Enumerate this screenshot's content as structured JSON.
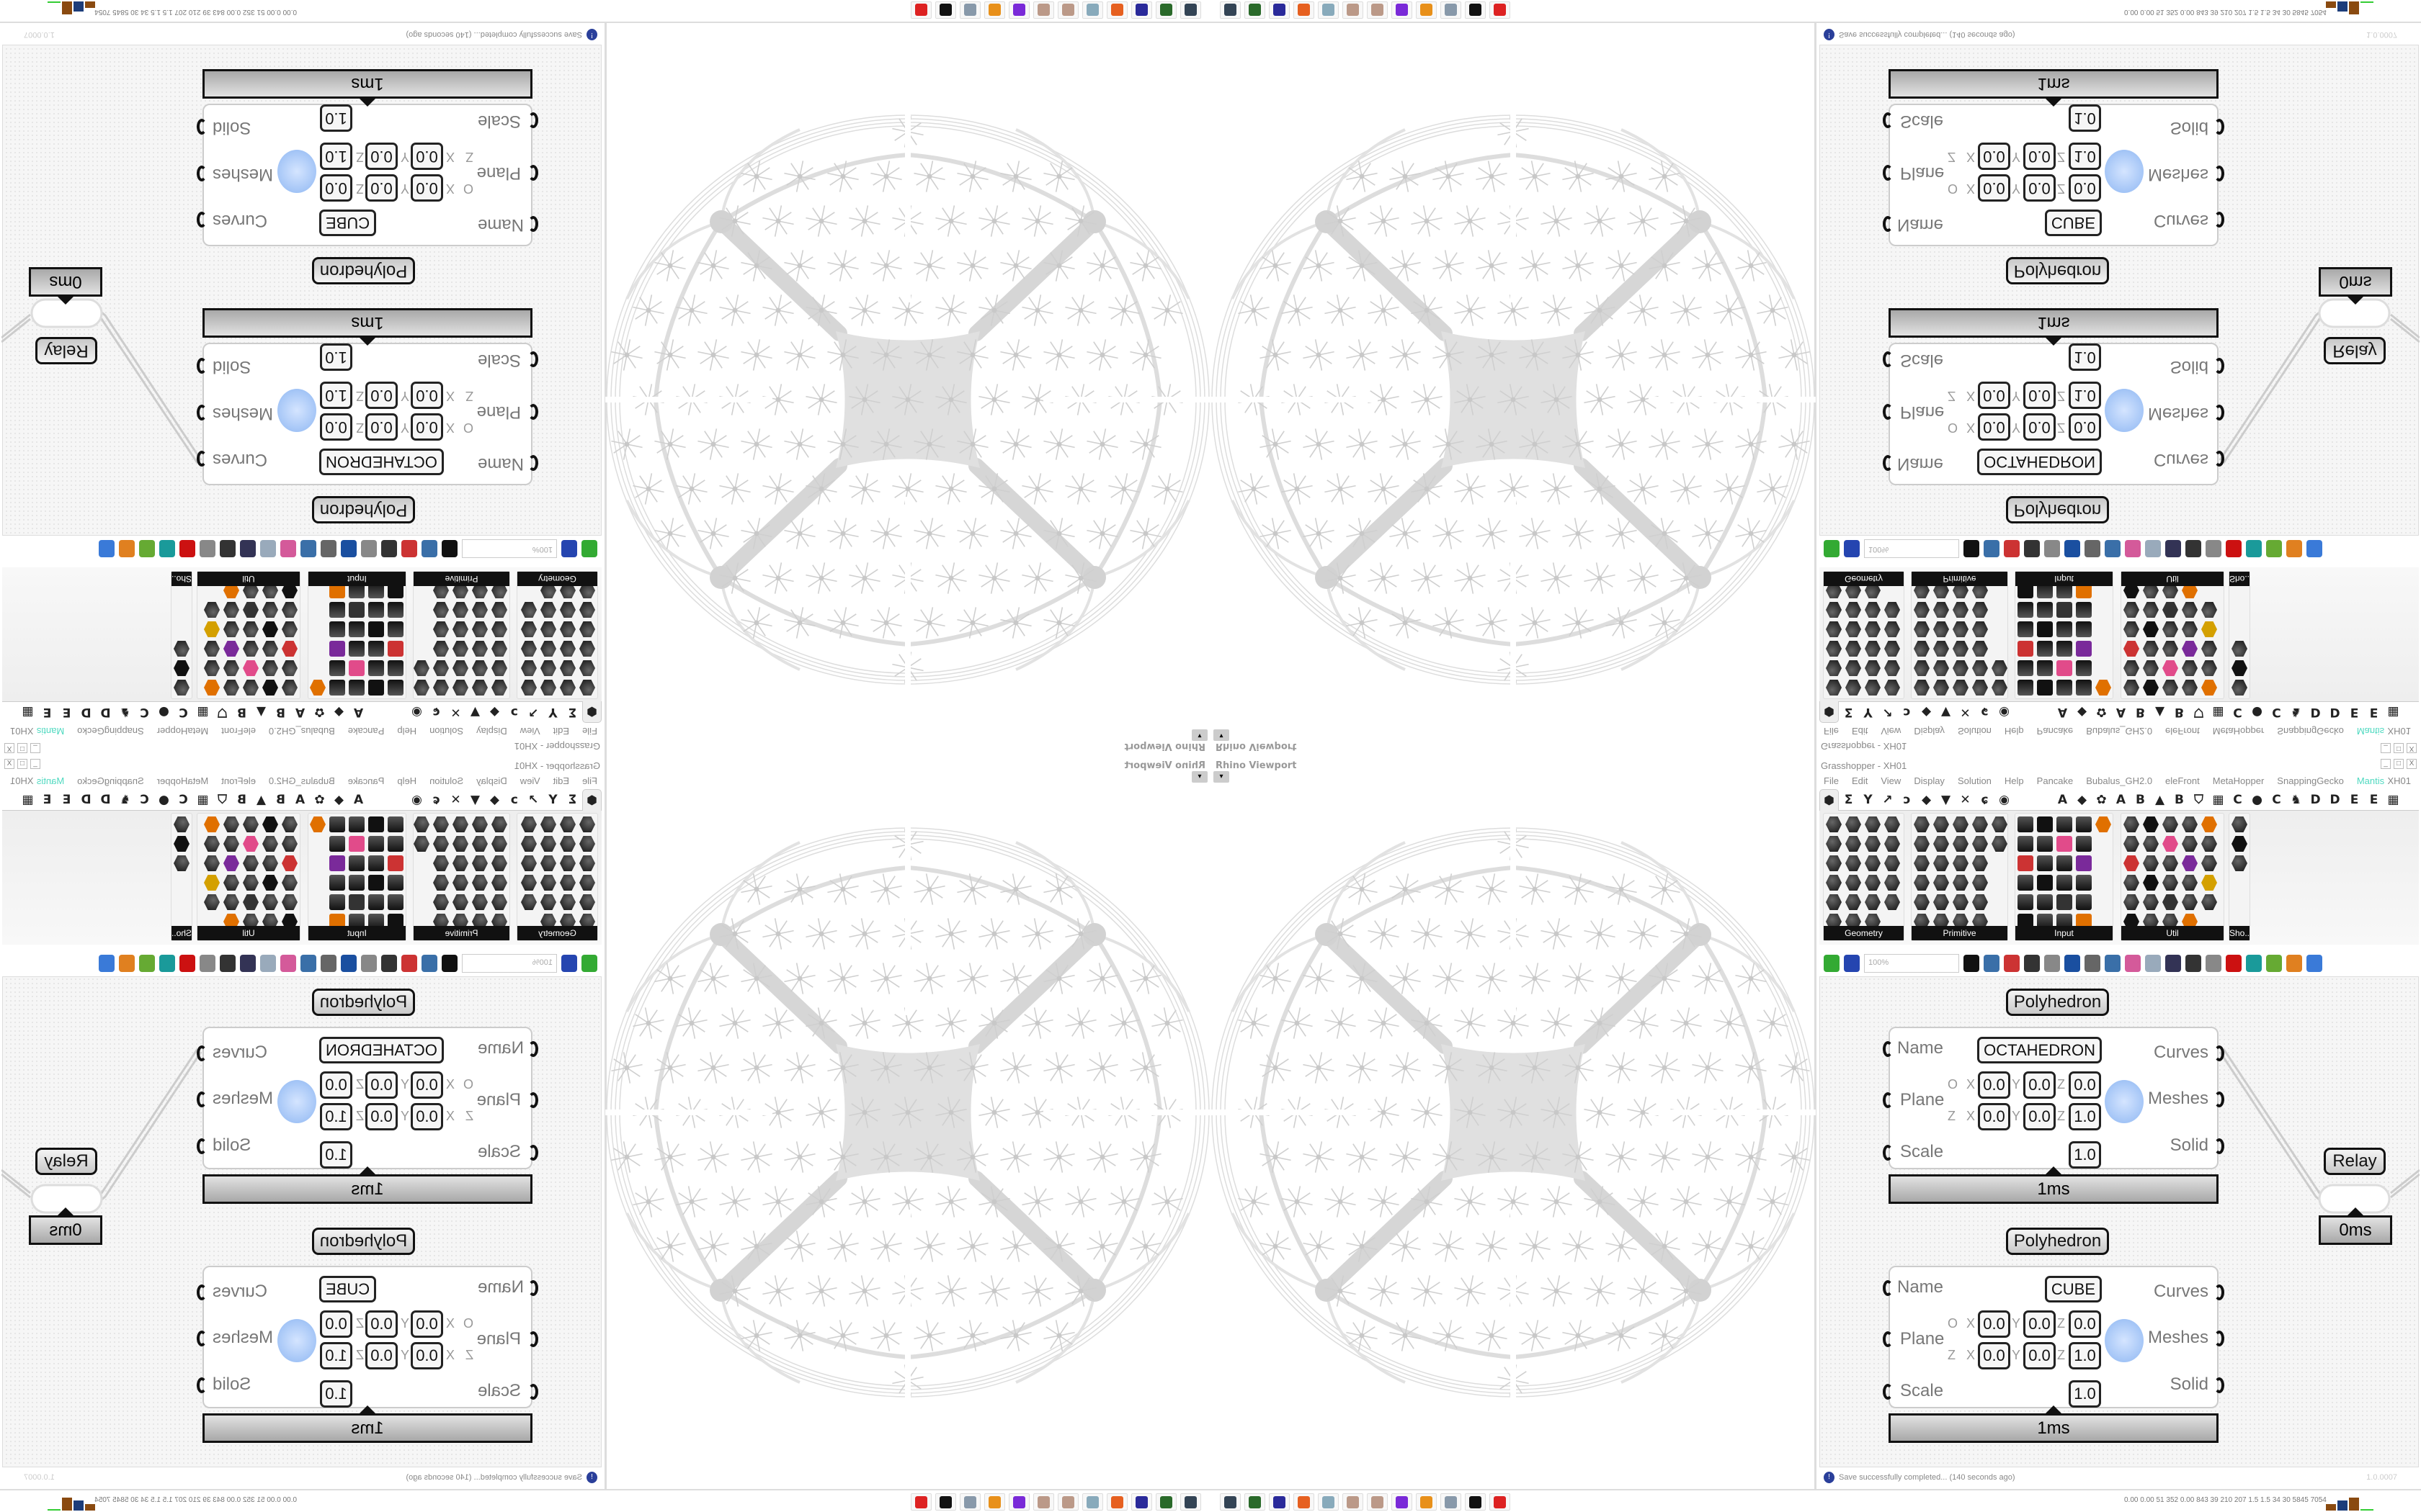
{
  "viewport": {
    "label": "Rhino Viewport",
    "dropdown": "▾"
  },
  "gh": {
    "title": "Grasshopper - XH01",
    "window_buttons": [
      "_",
      "□",
      "X"
    ],
    "menu": [
      "File",
      "Edit",
      "View",
      "Display",
      "Solution",
      "Help",
      "Pancake",
      "Bubalus_GH2.0",
      "eleFront",
      "MetaHopper",
      "SnappingGecko",
      "Mantis"
    ],
    "active_menu": "Mantis",
    "doc_name": "XH01",
    "tabs_left": [
      "⬢",
      "Σ",
      "Y",
      "↗",
      "ↄ",
      "◆",
      "▼",
      "✕",
      "ɕ",
      "◉"
    ],
    "tabs_right": [
      "A",
      "◆",
      "✿",
      "A",
      "B",
      "▲",
      "B",
      "⛉",
      "▦",
      "C",
      "●",
      "C",
      "♞",
      "D",
      "D",
      "E",
      "E",
      "▦"
    ],
    "panels": [
      {
        "label": "Geometry"
      },
      {
        "label": "Primitive"
      },
      {
        "label": "Input"
      },
      {
        "label": "Util"
      },
      {
        "label": "Sho..."
      }
    ],
    "zoom": "100%",
    "status": "Save successfully completed... (140 seconds ago)",
    "version": "1.0.0007",
    "accent": "#4fd9c0"
  },
  "components": [
    {
      "title": "Polyhedron",
      "name": "OCTAHEDRON",
      "inputs": [
        "Name",
        "Plane",
        "Scale"
      ],
      "outputs": [
        "Curves",
        "Meshes",
        "Solid"
      ],
      "origin": [
        "0.0",
        "0.0",
        "0.0"
      ],
      "zaxis": [
        "0.0",
        "0.0",
        "1.0"
      ],
      "scale": "1.0",
      "time": "1ms"
    },
    {
      "title": "Polyhedron",
      "name": "CUBE",
      "inputs": [
        "Name",
        "Plane",
        "Scale"
      ],
      "outputs": [
        "Curves",
        "Meshes",
        "Solid"
      ],
      "origin": [
        "0.0",
        "0.0",
        "0.0"
      ],
      "zaxis": [
        "0.0",
        "0.0",
        "1.0"
      ],
      "scale": "1.0",
      "time": "1ms"
    }
  ],
  "axis_labels": {
    "o": "O",
    "z": "Z",
    "x": "X",
    "y": "Y",
    "zc": "Z"
  },
  "relay": {
    "label": "Relay",
    "time": "0ms"
  },
  "perf": "0.00 0.00 51 352 0.00 843 39 210 207 1.5 1.5 34 30 5845 7054",
  "taskbar": [
    "remote-desktop-icon",
    "terminal-icon",
    "floppy-64-icon",
    "firefox-icon",
    "calculator-icon",
    "paint-icon",
    "paint-icon-2",
    "chat-icon",
    "blender-icon",
    "notes-icon",
    "rhino-icon",
    "gear-app-icon"
  ]
}
